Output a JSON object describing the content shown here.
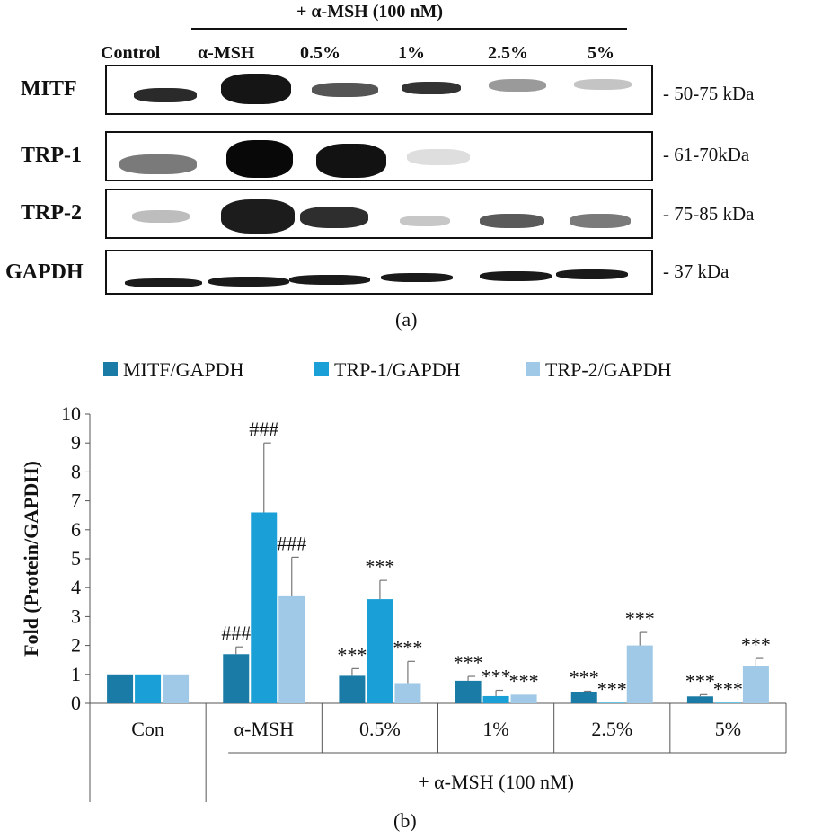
{
  "panel_a": {
    "treatment_header": "+ α-MSH (100 nM)",
    "lanes": [
      "Control",
      "α-MSH",
      "0.5%",
      "1%",
      "2.5%",
      "5%"
    ],
    "rows": [
      {
        "label": "MITF",
        "kda": "- 50-75 kDa"
      },
      {
        "label": "TRP-1",
        "kda": "- 61-70kDa"
      },
      {
        "label": "TRP-2",
        "kda": "-  75-85 kDa"
      },
      {
        "label": "GAPDH",
        "kda": "- 37 kDa"
      }
    ],
    "caption": "(a)"
  },
  "panel_b": {
    "caption": "(b)",
    "group_label": "+ α-MSH (100 nM)"
  },
  "colors": {
    "mitf": "#1a7ca6",
    "trp1": "#1aa0d6",
    "trp2": "#9fc9e6",
    "axis": "#555555",
    "text": "#111111"
  },
  "chart_data": {
    "type": "bar",
    "title": "",
    "xlabel": "",
    "ylabel": "Fold (Protein/GAPDH)",
    "ylim": [
      0,
      10
    ],
    "yticks": [
      0,
      1,
      2,
      3,
      4,
      5,
      6,
      7,
      8,
      9,
      10
    ],
    "categories": [
      "Con",
      "α-MSH",
      "0.5%",
      "1%",
      "2.5%",
      "5%"
    ],
    "legend_position": "top",
    "series": [
      {
        "name": "MITF/GAPDH",
        "color": "#1a7ca6",
        "values": [
          1.0,
          1.7,
          0.95,
          0.78,
          0.38,
          0.24
        ],
        "errors": [
          0.0,
          0.25,
          0.25,
          0.15,
          0.04,
          0.06
        ],
        "annotations": [
          "",
          "###",
          "***",
          "***",
          "***",
          "***"
        ]
      },
      {
        "name": "TRP-1/GAPDH",
        "color": "#1aa0d6",
        "values": [
          1.0,
          6.6,
          3.6,
          0.25,
          0.02,
          0.02
        ],
        "errors": [
          0.0,
          2.4,
          0.65,
          0.2,
          0.0,
          0.0
        ],
        "annotations": [
          "",
          "###",
          "***",
          "***",
          "***",
          "***"
        ]
      },
      {
        "name": "TRP-2/GAPDH",
        "color": "#9fc9e6",
        "values": [
          1.0,
          3.7,
          0.7,
          0.3,
          2.0,
          1.3
        ],
        "errors": [
          0.0,
          1.35,
          0.75,
          0.0,
          0.45,
          0.25
        ],
        "annotations": [
          "",
          "###",
          "***",
          "***",
          "***",
          "***"
        ]
      }
    ]
  }
}
